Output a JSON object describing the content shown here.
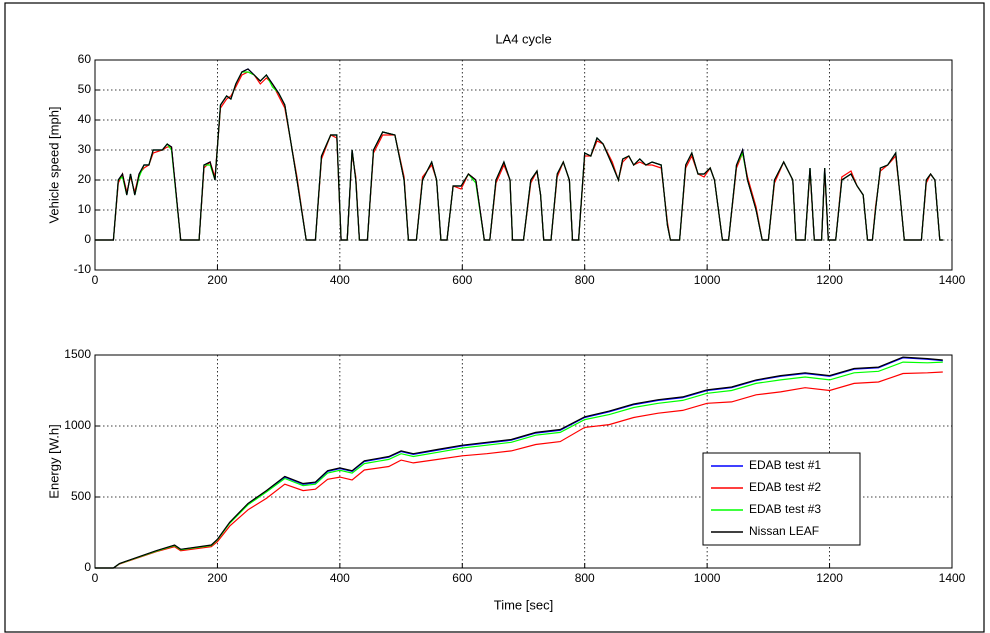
{
  "chart_data": [
    {
      "type": "line",
      "title": "LA4 cycle",
      "ylabel": "Vehicle speed [mph]",
      "xlim": [
        0,
        1400
      ],
      "xticks": [
        0,
        200,
        400,
        600,
        800,
        1000,
        1200,
        1400
      ],
      "ylim": [
        -10,
        60
      ],
      "yticks": [
        -10,
        0,
        10,
        20,
        30,
        40,
        50,
        60
      ],
      "grid": true,
      "x": [
        0,
        20,
        30,
        38,
        45,
        52,
        58,
        65,
        72,
        80,
        88,
        95,
        110,
        118,
        125,
        140,
        170,
        178,
        188,
        196,
        205,
        215,
        222,
        230,
        240,
        250,
        260,
        270,
        280,
        290,
        300,
        310,
        330,
        345,
        360,
        370,
        385,
        395,
        402,
        412,
        420,
        426,
        432,
        445,
        455,
        470,
        490,
        505,
        512,
        525,
        535,
        550,
        558,
        565,
        575,
        585,
        598,
        610,
        622,
        636,
        645,
        655,
        668,
        678,
        682,
        700,
        712,
        722,
        728,
        733,
        745,
        755,
        765,
        775,
        780,
        790,
        800,
        810,
        820,
        830,
        845,
        855,
        862,
        872,
        880,
        890,
        900,
        910,
        925,
        935,
        940,
        955,
        965,
        975,
        985,
        995,
        1005,
        1012,
        1025,
        1035,
        1048,
        1058,
        1066,
        1080,
        1090,
        1100,
        1110,
        1125,
        1140,
        1145,
        1160,
        1168,
        1175,
        1187,
        1192,
        1198,
        1210,
        1220,
        1235,
        1245,
        1255,
        1262,
        1270,
        1275,
        1283,
        1295,
        1308,
        1315,
        1322,
        1350,
        1358,
        1365,
        1372,
        1380,
        1385
      ],
      "series": [
        {
          "color": "#0000ff",
          "values": [
            0,
            0,
            0,
            20,
            22,
            15,
            22,
            15,
            22,
            25,
            25,
            30,
            30,
            32,
            31,
            0,
            0,
            25,
            26,
            20,
            45,
            48,
            47,
            52,
            56,
            57,
            55,
            53,
            55,
            52,
            49,
            45,
            20,
            0,
            0,
            28,
            35,
            35,
            0,
            0,
            30,
            20,
            0,
            0,
            30,
            36,
            35,
            20,
            0,
            0,
            20,
            26,
            20,
            0,
            0,
            18,
            18,
            22,
            20,
            0,
            0,
            20,
            26,
            20,
            0,
            0,
            20,
            23,
            15,
            0,
            0,
            22,
            26,
            20,
            0,
            0,
            29,
            28,
            34,
            32,
            25,
            20,
            27,
            28,
            25,
            27,
            25,
            26,
            25,
            5,
            0,
            0,
            25,
            29,
            22,
            22,
            24,
            20,
            0,
            0,
            25,
            30,
            20,
            10,
            0,
            0,
            20,
            26,
            20,
            0,
            0,
            24,
            0,
            0,
            24,
            0,
            0,
            20,
            22,
            18,
            15,
            0,
            0,
            10,
            24,
            25,
            29,
            15,
            0,
            0,
            20,
            22,
            20,
            0,
            0
          ]
        },
        {
          "color": "#ff0000",
          "values": [
            0,
            0,
            0,
            19,
            22,
            16,
            21,
            16,
            22,
            24,
            25,
            29,
            30,
            31,
            31,
            0,
            0,
            24,
            26,
            21,
            44,
            47,
            48,
            51,
            55,
            56,
            55,
            52,
            54,
            52,
            48,
            44,
            21,
            0,
            0,
            27,
            35,
            34,
            0,
            0,
            29,
            21,
            0,
            0,
            29,
            35,
            35,
            21,
            0,
            0,
            21,
            25,
            20,
            0,
            0,
            18,
            17,
            22,
            20,
            0,
            0,
            19,
            25,
            20,
            0,
            0,
            19,
            23,
            15,
            0,
            0,
            21,
            26,
            20,
            0,
            0,
            28,
            28,
            33,
            32,
            26,
            20,
            26,
            28,
            25,
            26,
            25,
            25,
            24,
            6,
            0,
            0,
            24,
            28,
            22,
            21,
            24,
            20,
            0,
            0,
            24,
            29,
            21,
            11,
            0,
            0,
            19,
            26,
            20,
            0,
            0,
            23,
            0,
            0,
            23,
            0,
            0,
            21,
            23,
            18,
            15,
            0,
            0,
            11,
            23,
            25,
            28,
            15,
            0,
            0,
            19,
            22,
            20,
            0,
            0
          ]
        },
        {
          "color": "#00ff00",
          "values": [
            0,
            0,
            0,
            20,
            21,
            15,
            22,
            15,
            21,
            25,
            25,
            30,
            30,
            32,
            30,
            0,
            0,
            25,
            25,
            20,
            45,
            48,
            47,
            52,
            56,
            56,
            55,
            53,
            55,
            51,
            49,
            45,
            20,
            0,
            0,
            28,
            35,
            35,
            0,
            0,
            30,
            20,
            0,
            0,
            30,
            36,
            35,
            20,
            0,
            0,
            20,
            26,
            20,
            0,
            0,
            18,
            18,
            22,
            19,
            0,
            0,
            20,
            26,
            20,
            0,
            0,
            20,
            23,
            15,
            0,
            0,
            22,
            26,
            20,
            0,
            0,
            29,
            28,
            34,
            32,
            25,
            20,
            27,
            28,
            25,
            27,
            25,
            26,
            25,
            5,
            0,
            0,
            25,
            29,
            22,
            22,
            24,
            20,
            0,
            0,
            25,
            29,
            20,
            10,
            0,
            0,
            20,
            26,
            20,
            0,
            0,
            24,
            0,
            0,
            24,
            0,
            0,
            20,
            22,
            18,
            15,
            0,
            0,
            10,
            24,
            25,
            29,
            15,
            0,
            0,
            20,
            22,
            20,
            0,
            0
          ]
        },
        {
          "color": "#000000",
          "values": [
            0,
            0,
            0,
            20,
            22,
            15,
            22,
            15,
            22,
            25,
            25,
            30,
            30,
            32,
            31,
            0,
            0,
            25,
            26,
            20,
            45,
            48,
            47,
            52,
            56,
            57,
            55,
            53,
            55,
            52,
            49,
            45,
            20,
            0,
            0,
            28,
            35,
            35,
            0,
            0,
            30,
            20,
            0,
            0,
            30,
            36,
            35,
            20,
            0,
            0,
            20,
            26,
            20,
            0,
            0,
            18,
            18,
            22,
            20,
            0,
            0,
            20,
            26,
            20,
            0,
            0,
            20,
            23,
            15,
            0,
            0,
            22,
            26,
            20,
            0,
            0,
            29,
            28,
            34,
            32,
            25,
            20,
            27,
            28,
            25,
            27,
            25,
            26,
            25,
            5,
            0,
            0,
            25,
            29,
            22,
            22,
            24,
            20,
            0,
            0,
            25,
            30,
            20,
            10,
            0,
            0,
            20,
            26,
            20,
            0,
            0,
            24,
            0,
            0,
            24,
            0,
            0,
            20,
            22,
            18,
            15,
            0,
            0,
            10,
            24,
            25,
            29,
            15,
            0,
            0,
            20,
            22,
            20,
            0,
            0
          ]
        }
      ]
    },
    {
      "type": "line",
      "xlabel": "Time [sec]",
      "ylabel": "Energy [W.h]",
      "xlim": [
        0,
        1400
      ],
      "xticks": [
        0,
        200,
        400,
        600,
        800,
        1000,
        1200,
        1400
      ],
      "ylim": [
        0,
        1500
      ],
      "yticks": [
        0,
        500,
        1000,
        1500
      ],
      "grid": true,
      "legend": "lower right",
      "x": [
        0,
        30,
        40,
        100,
        130,
        140,
        190,
        200,
        220,
        250,
        280,
        310,
        340,
        360,
        380,
        400,
        420,
        440,
        480,
        500,
        520,
        560,
        600,
        640,
        680,
        720,
        760,
        800,
        840,
        880,
        920,
        960,
        1000,
        1040,
        1080,
        1120,
        1160,
        1200,
        1240,
        1280,
        1320,
        1360,
        1385
      ],
      "series": [
        {
          "name": "EDAB test #1",
          "color": "#0000ff",
          "values": [
            0,
            0,
            30,
            120,
            160,
            130,
            160,
            200,
            320,
            450,
            540,
            640,
            590,
            600,
            680,
            700,
            680,
            750,
            780,
            820,
            800,
            830,
            860,
            880,
            900,
            950,
            970,
            1060,
            1100,
            1150,
            1180,
            1200,
            1250,
            1270,
            1320,
            1350,
            1370,
            1350,
            1400,
            1410,
            1480,
            1470,
            1460
          ]
        },
        {
          "name": "EDAB test #2",
          "color": "#ff0000",
          "values": [
            0,
            0,
            28,
            115,
            150,
            122,
            150,
            185,
            295,
            410,
            490,
            590,
            545,
            555,
            625,
            640,
            620,
            690,
            715,
            760,
            740,
            765,
            790,
            805,
            825,
            870,
            890,
            990,
            1010,
            1060,
            1090,
            1110,
            1160,
            1170,
            1220,
            1240,
            1270,
            1250,
            1300,
            1310,
            1370,
            1375,
            1380
          ]
        },
        {
          "name": "EDAB test #3",
          "color": "#00ff00",
          "values": [
            0,
            0,
            30,
            118,
            158,
            128,
            158,
            198,
            315,
            445,
            535,
            630,
            580,
            590,
            668,
            688,
            668,
            735,
            765,
            805,
            785,
            815,
            845,
            865,
            885,
            935,
            955,
            1045,
            1080,
            1130,
            1160,
            1180,
            1230,
            1250,
            1300,
            1325,
            1345,
            1325,
            1375,
            1385,
            1450,
            1445,
            1450
          ]
        },
        {
          "name": "Nissan LEAF",
          "color": "#000000",
          "values": [
            0,
            0,
            32,
            122,
            162,
            132,
            162,
            202,
            322,
            455,
            545,
            645,
            595,
            605,
            685,
            705,
            685,
            755,
            785,
            825,
            805,
            835,
            865,
            885,
            905,
            955,
            975,
            1065,
            1105,
            1155,
            1185,
            1205,
            1255,
            1275,
            1325,
            1355,
            1375,
            1355,
            1405,
            1415,
            1485,
            1475,
            1465
          ]
        }
      ]
    }
  ]
}
